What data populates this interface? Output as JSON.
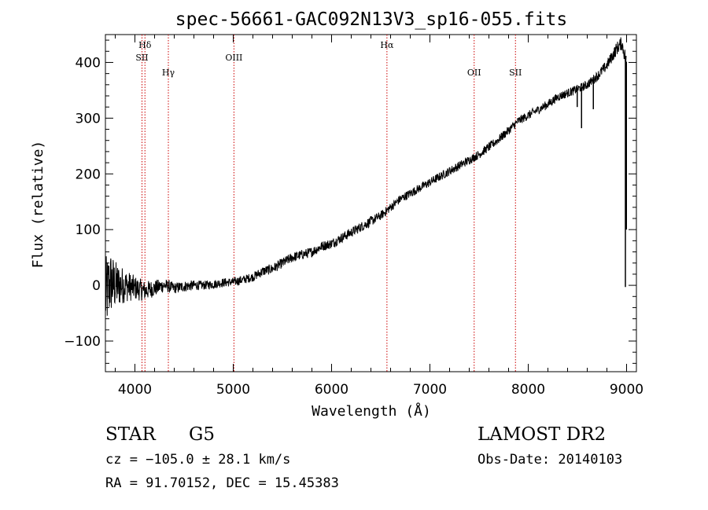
{
  "chart_data": {
    "type": "line",
    "title": "spec-56661-GAC092N13V3_sp16-055.fits",
    "xlabel": "Wavelength (Å)",
    "ylabel": "Flux (relative)",
    "xlim": [
      3700,
      9100
    ],
    "ylim": [
      -155,
      450
    ],
    "xticks": [
      4000,
      5000,
      6000,
      7000,
      8000,
      9000
    ],
    "xtick_labels": [
      "4000",
      "5000",
      "6000",
      "7000",
      "8000",
      "9000"
    ],
    "yticks": [
      -100,
      0,
      100,
      200,
      300,
      400
    ],
    "ytick_labels": [
      "−100",
      "0",
      "100",
      "200",
      "300",
      "400"
    ],
    "grid": false,
    "series": [
      {
        "x": [
          3700,
          3750,
          3800,
          3900,
          4000,
          4100,
          4200,
          4300,
          4400,
          4500,
          4600,
          4700,
          4800,
          4900,
          5000,
          5100,
          5200,
          5300,
          5400,
          5500,
          5600,
          5700,
          5800,
          5900,
          6000,
          6100,
          6200,
          6300,
          6400,
          6500,
          6600,
          6700,
          6800,
          6900,
          7000,
          7100,
          7200,
          7300,
          7400,
          7500,
          7600,
          7700,
          7800,
          7900,
          8000,
          8100,
          8200,
          8300,
          8400,
          8500,
          8600,
          8700,
          8800,
          8900,
          8950,
          9000
        ],
        "y": [
          -20,
          5,
          0,
          0,
          -5,
          -10,
          -5,
          0,
          -5,
          -2,
          0,
          0,
          2,
          5,
          6,
          10,
          15,
          25,
          30,
          40,
          50,
          55,
          60,
          70,
          75,
          85,
          95,
          105,
          115,
          125,
          140,
          155,
          165,
          175,
          185,
          195,
          205,
          215,
          225,
          235,
          248,
          262,
          278,
          295,
          305,
          315,
          325,
          338,
          345,
          352,
          360,
          375,
          395,
          425,
          435,
          400
        ],
        "noise": [
          70,
          60,
          45,
          30,
          22,
          18,
          15,
          12,
          10,
          10,
          9,
          8,
          8,
          8,
          8,
          8,
          8,
          9,
          9,
          9,
          9,
          9,
          9,
          9,
          9,
          9,
          9,
          9,
          9,
          8,
          8,
          8,
          8,
          8,
          8,
          8,
          8,
          8,
          8,
          8,
          8,
          8,
          8,
          8,
          8,
          8,
          8,
          8,
          8,
          8,
          8,
          9,
          10,
          12,
          12,
          15
        ],
        "absorption_lines": [
          {
            "x": 8498,
            "y": 320
          },
          {
            "x": 8542,
            "y": 282
          },
          {
            "x": 8662,
            "y": 316
          },
          {
            "x": 8988,
            "y": -3
          },
          {
            "x": 8998,
            "y": 100
          }
        ]
      }
    ],
    "spectral_lines": [
      {
        "label": "Hδ",
        "x": 4102,
        "level": 0
      },
      {
        "label": "SII",
        "x": 4072,
        "level": 1
      },
      {
        "label": "Hγ",
        "x": 4340,
        "level": 2
      },
      {
        "label": "OIII",
        "x": 5007,
        "level": 1
      },
      {
        "label": "Hα",
        "x": 6563,
        "level": 0
      },
      {
        "label": "OII",
        "x": 7450,
        "level": 2
      },
      {
        "label": "SII",
        "x": 7870,
        "level": 2
      }
    ],
    "line_color": "#000000",
    "marker_color": "#cc0000"
  },
  "info": {
    "object_class": "STAR",
    "subclass": "G5",
    "survey": "LAMOST DR2",
    "redshift": "cz = −105.0 ± 28.1 km/s",
    "obs_date": "Obs-Date: 20140103",
    "coords": "RA =  91.70152, DEC =  15.45383"
  }
}
